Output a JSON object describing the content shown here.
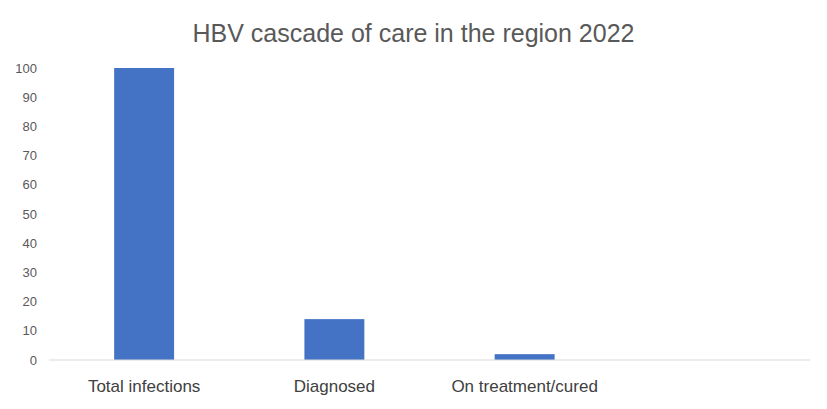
{
  "chart_data": {
    "type": "bar",
    "title": "HBV cascade of care in the region 2022",
    "categories": [
      "Total infections",
      "Diagnosed",
      "On treatment/cured",
      null
    ],
    "values": [
      100,
      14,
      2,
      null
    ],
    "color": "#4472c4",
    "ylim": [
      0,
      100
    ],
    "yticks": [
      0,
      10,
      20,
      30,
      40,
      50,
      60,
      70,
      80,
      90,
      100
    ],
    "grid": false
  }
}
